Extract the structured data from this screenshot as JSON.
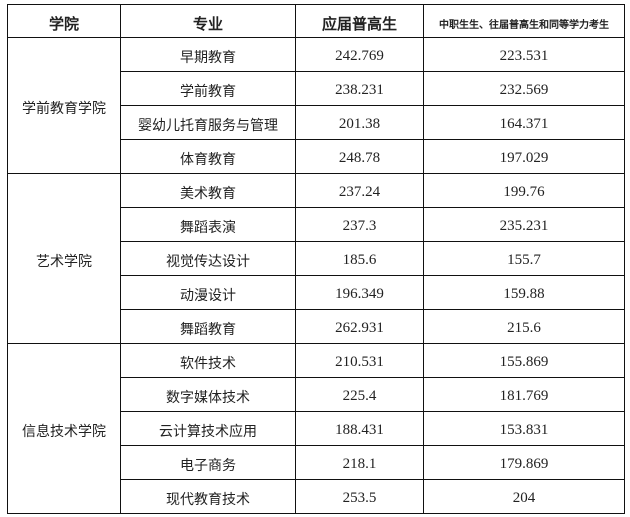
{
  "headers": {
    "college": "学院",
    "major": "专业",
    "fresh_graduates": "应届普高生",
    "others": "中职生生、往届普高生和同等学力考生"
  },
  "colleges": [
    {
      "name": "学前教育学院",
      "rows": [
        {
          "major": "早期教育",
          "fresh": "242.769",
          "others": "223.531"
        },
        {
          "major": "学前教育",
          "fresh": "238.231",
          "others": "232.569"
        },
        {
          "major": "婴幼儿托育服务与管理",
          "fresh": "201.38",
          "others": "164.371"
        },
        {
          "major": "体育教育",
          "fresh": "248.78",
          "others": "197.029"
        }
      ]
    },
    {
      "name": "艺术学院",
      "rows": [
        {
          "major": "美术教育",
          "fresh": "237.24",
          "others": "199.76"
        },
        {
          "major": "舞蹈表演",
          "fresh": "237.3",
          "others": "235.231"
        },
        {
          "major": "视觉传达设计",
          "fresh": "185.6",
          "others": "155.7"
        },
        {
          "major": "动漫设计",
          "fresh": "196.349",
          "others": "159.88"
        },
        {
          "major": "舞蹈教育",
          "fresh": "262.931",
          "others": "215.6"
        }
      ]
    },
    {
      "name": "信息技术学院",
      "rows": [
        {
          "major": "软件技术",
          "fresh": "210.531",
          "others": "155.869"
        },
        {
          "major": "数字媒体技术",
          "fresh": "225.4",
          "others": "181.769"
        },
        {
          "major": "云计算技术应用",
          "fresh": "188.431",
          "others": "153.831"
        },
        {
          "major": "电子商务",
          "fresh": "218.1",
          "others": "179.869"
        },
        {
          "major": "现代教育技术",
          "fresh": "253.5",
          "others": "204"
        }
      ]
    }
  ]
}
